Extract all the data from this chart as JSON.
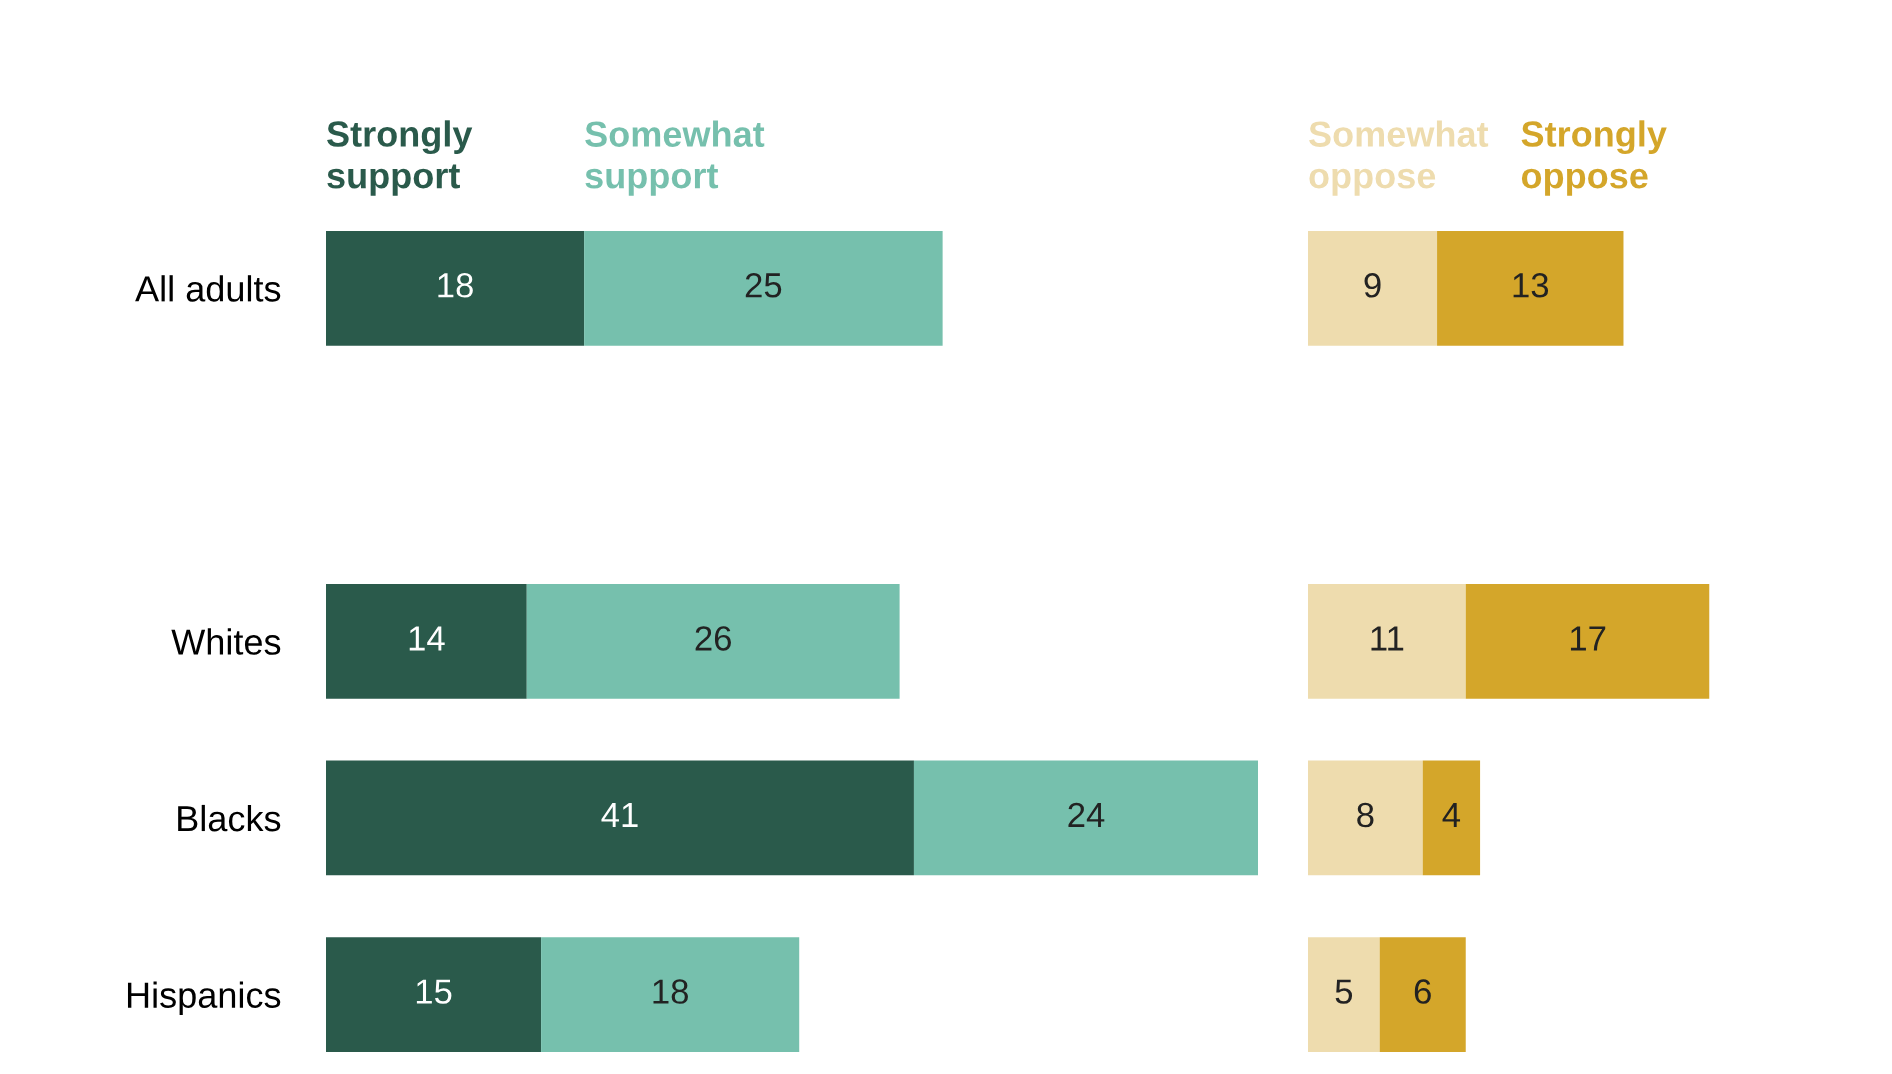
{
  "chart_data": [
    {
      "type": "bar",
      "orientation": "horizontal",
      "stacked": true,
      "data_labels": true,
      "legend": "top",
      "tick_labels": "y",
      "grid": false,
      "categories": [
        "All adults",
        null,
        "Whites",
        "Blacks",
        "Hispanics"
      ],
      "series": [
        {
          "name": "Strongly support",
          "color": "#2a5a4b",
          "values": [
            18,
            null,
            14,
            41,
            15
          ]
        },
        {
          "name": "Somewhat support",
          "color": "#76c0ad",
          "values": [
            25,
            null,
            26,
            24,
            18
          ]
        }
      ]
    },
    {
      "type": "bar",
      "orientation": "horizontal",
      "stacked": true,
      "data_labels": true,
      "legend": "top",
      "tick_labels": false,
      "grid": false,
      "categories": [
        null,
        null,
        null,
        null,
        null
      ],
      "series": [
        {
          "name": "Somewhat oppose",
          "color": "#eedcae",
          "values": [
            9,
            null,
            11,
            8,
            5
          ]
        },
        {
          "name": "Strongly oppose",
          "color": "#d4a62a",
          "values": [
            13,
            null,
            17,
            4,
            6
          ]
        }
      ]
    }
  ]
}
